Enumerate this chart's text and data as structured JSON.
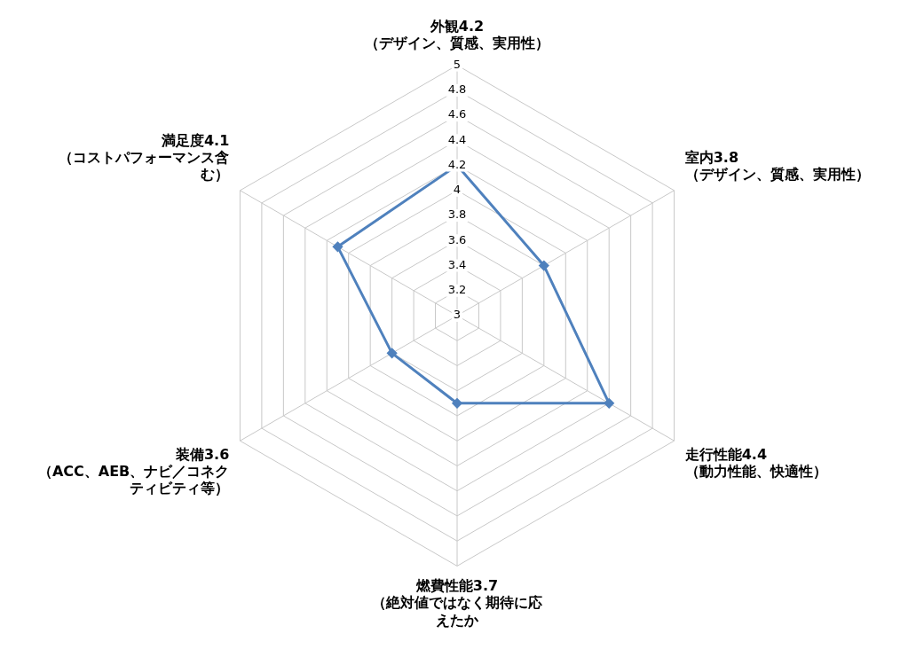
{
  "chart_data": {
    "type": "radar",
    "categories": [
      "外観4.2\n（デザイン、質感、実用性）",
      "室内3.8\n（デザイン、質感、実用性）",
      "走行性能4.4\n（動力性能、快適性）",
      "燃費性能3.7\n（絶対値ではなく期待に応えたか",
      "装備3.6\n（ACC、AEB、ナビ／コネクティビティ等）",
      "満足度4.1\n（コストパフォーマンス含む）"
    ],
    "series": [
      {
        "color": "#4f81bd",
        "values": [
          4.2,
          3.8,
          4.4,
          3.7,
          3.6,
          4.1
        ]
      }
    ],
    "ylim": [
      3,
      5
    ],
    "yticks": [
      3,
      3.2,
      3.4,
      3.6,
      3.8,
      4,
      4.2,
      4.4,
      4.6,
      4.8,
      5
    ],
    "grid": true,
    "legend": false,
    "marker": "diamond",
    "line_style": "solid"
  }
}
